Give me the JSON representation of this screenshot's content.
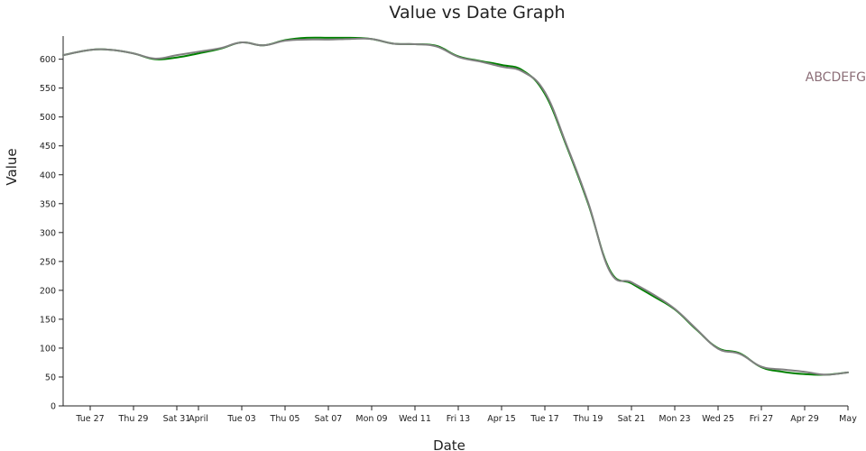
{
  "chart_data": {
    "type": "line",
    "title": "Value vs Date Graph",
    "xlabel": "Date",
    "ylabel": "Value",
    "annotation": "ABCDEFG",
    "ylim": [
      0,
      640
    ],
    "xlim": [
      "2026-03-25T18:00",
      "2026-05-01"
    ],
    "y_ticks": [
      0,
      50,
      100,
      150,
      200,
      250,
      300,
      350,
      400,
      450,
      500,
      550,
      600
    ],
    "x_ticks": [
      {
        "date": "2026-03-27",
        "label": "Tue 27"
      },
      {
        "date": "2026-03-29",
        "label": "Thu 29"
      },
      {
        "date": "2026-03-31",
        "label": "Sat 31"
      },
      {
        "date": "2026-04-01",
        "label": "April"
      },
      {
        "date": "2026-04-03",
        "label": "Tue 03"
      },
      {
        "date": "2026-04-05",
        "label": "Thu 05"
      },
      {
        "date": "2026-04-07",
        "label": "Sat 07"
      },
      {
        "date": "2026-04-09",
        "label": "Mon 09"
      },
      {
        "date": "2026-04-11",
        "label": "Wed 11"
      },
      {
        "date": "2026-04-13",
        "label": "Fri 13"
      },
      {
        "date": "2026-04-15",
        "label": "Apr 15"
      },
      {
        "date": "2026-04-17",
        "label": "Tue 17"
      },
      {
        "date": "2026-04-19",
        "label": "Thu 19"
      },
      {
        "date": "2026-04-21",
        "label": "Sat 21"
      },
      {
        "date": "2026-04-23",
        "label": "Mon 23"
      },
      {
        "date": "2026-04-25",
        "label": "Wed 25"
      },
      {
        "date": "2026-04-27",
        "label": "Fri 27"
      },
      {
        "date": "2026-04-29",
        "label": "Apr 29"
      },
      {
        "date": "2026-05-01",
        "label": "May"
      }
    ],
    "series": [
      {
        "color": "#008000",
        "points": [
          [
            "2026-03-25T18:00",
            607
          ],
          [
            "2026-03-27",
            616
          ],
          [
            "2026-03-28",
            616
          ],
          [
            "2026-03-29",
            610
          ],
          [
            "2026-03-30",
            600
          ],
          [
            "2026-03-31",
            603
          ],
          [
            "2026-04-01",
            610
          ],
          [
            "2026-04-02",
            618
          ],
          [
            "2026-04-03",
            629
          ],
          [
            "2026-04-04",
            624
          ],
          [
            "2026-04-05",
            633
          ],
          [
            "2026-04-06",
            637
          ],
          [
            "2026-04-07",
            637
          ],
          [
            "2026-04-08",
            637
          ],
          [
            "2026-04-09",
            635
          ],
          [
            "2026-04-10",
            627
          ],
          [
            "2026-04-11",
            626
          ],
          [
            "2026-04-12",
            623
          ],
          [
            "2026-04-13",
            605
          ],
          [
            "2026-04-14",
            597
          ],
          [
            "2026-04-15",
            590
          ],
          [
            "2026-04-16",
            580
          ],
          [
            "2026-04-17",
            540
          ],
          [
            "2026-04-18",
            450
          ],
          [
            "2026-04-19",
            350
          ],
          [
            "2026-04-20",
            235
          ],
          [
            "2026-04-21",
            212
          ],
          [
            "2026-04-22",
            190
          ],
          [
            "2026-04-23",
            167
          ],
          [
            "2026-04-24",
            132
          ],
          [
            "2026-04-25",
            100
          ],
          [
            "2026-04-26",
            91
          ],
          [
            "2026-04-27",
            67
          ],
          [
            "2026-04-28",
            59
          ],
          [
            "2026-04-29",
            55
          ],
          [
            "2026-04-30",
            54
          ],
          [
            "2026-05-01",
            58
          ]
        ]
      },
      {
        "color": "#808080",
        "points": [
          [
            "2026-03-25T18:00",
            607
          ],
          [
            "2026-03-27",
            616
          ],
          [
            "2026-03-28",
            616
          ],
          [
            "2026-03-29",
            610
          ],
          [
            "2026-03-30",
            601
          ],
          [
            "2026-03-31",
            607
          ],
          [
            "2026-04-01",
            613
          ],
          [
            "2026-04-02",
            619
          ],
          [
            "2026-04-03",
            629
          ],
          [
            "2026-04-04",
            624
          ],
          [
            "2026-04-05",
            632
          ],
          [
            "2026-04-06",
            634
          ],
          [
            "2026-04-07",
            634
          ],
          [
            "2026-04-08",
            635
          ],
          [
            "2026-04-09",
            635
          ],
          [
            "2026-04-10",
            627
          ],
          [
            "2026-04-11",
            626
          ],
          [
            "2026-04-12",
            622
          ],
          [
            "2026-04-13",
            604
          ],
          [
            "2026-04-14",
            596
          ],
          [
            "2026-04-15",
            587
          ],
          [
            "2026-04-16",
            578
          ],
          [
            "2026-04-17",
            543
          ],
          [
            "2026-04-18",
            452
          ],
          [
            "2026-04-19",
            352
          ],
          [
            "2026-04-20",
            233
          ],
          [
            "2026-04-21",
            214
          ],
          [
            "2026-04-22",
            193
          ],
          [
            "2026-04-23",
            168
          ],
          [
            "2026-04-24",
            133
          ],
          [
            "2026-04-25",
            99
          ],
          [
            "2026-04-26",
            90
          ],
          [
            "2026-04-27",
            68
          ],
          [
            "2026-04-28",
            63
          ],
          [
            "2026-04-29",
            59
          ],
          [
            "2026-04-30",
            54
          ],
          [
            "2026-05-01",
            58
          ]
        ]
      }
    ]
  }
}
